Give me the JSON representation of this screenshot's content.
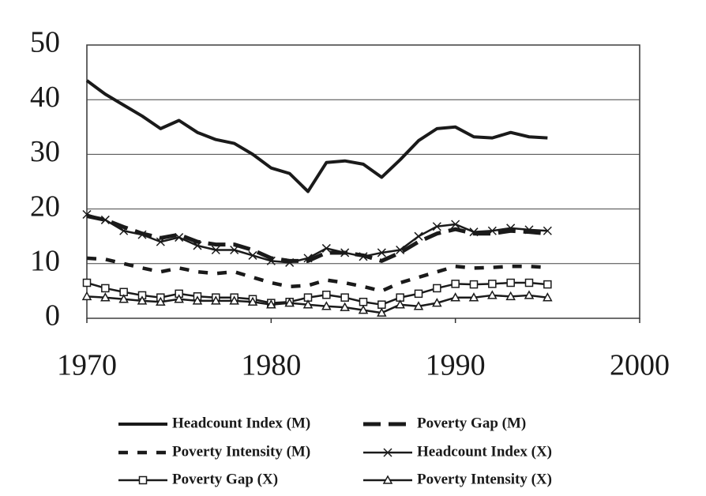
{
  "chart_data": {
    "type": "line",
    "x": [
      1970,
      1971,
      1972,
      1973,
      1974,
      1975,
      1976,
      1977,
      1978,
      1979,
      1980,
      1981,
      1982,
      1983,
      1984,
      1985,
      1986,
      1987,
      1988,
      1989,
      1990,
      1991,
      1992,
      1993,
      1994,
      1995
    ],
    "xlim": [
      1970,
      2000
    ],
    "xticks": [
      1970,
      1980,
      1990,
      2000
    ],
    "ylim": [
      0,
      50
    ],
    "yticks": [
      0,
      10,
      20,
      30,
      40,
      50
    ],
    "grid": true,
    "legend": "bottom",
    "series": [
      {
        "name": "Headcount Index (M)",
        "color": "#1a1a1a",
        "line_style": "solid",
        "marker": "none",
        "values": [
          43.5,
          41,
          39,
          37,
          34.7,
          36.2,
          34,
          32.7,
          32,
          30,
          27.5,
          26.5,
          23.2,
          28.5,
          28.8,
          28.2,
          25.8,
          29,
          32.5,
          34.7,
          35,
          33.2,
          33,
          34,
          33.2,
          33
        ]
      },
      {
        "name": "Poverty Gap (M)",
        "color": "#1a1a1a",
        "line_style": "longdash",
        "marker": "none",
        "values": [
          18.7,
          18,
          16.7,
          15.5,
          14.7,
          15.3,
          14,
          13.5,
          13.5,
          12.5,
          11,
          10.5,
          10.5,
          12,
          12,
          11.5,
          10.5,
          12,
          14,
          15.5,
          16.3,
          15.5,
          15.5,
          16,
          15.8,
          15.5
        ]
      },
      {
        "name": "Poverty Intensity (M)",
        "color": "#1a1a1a",
        "line_style": "dash",
        "marker": "none",
        "values": [
          11,
          10.8,
          10,
          9.2,
          8.5,
          9.2,
          8.5,
          8.2,
          8.5,
          7.5,
          6.5,
          5.8,
          6,
          7,
          6.5,
          5.8,
          5,
          6.5,
          7.5,
          8.5,
          9.5,
          9.2,
          9.3,
          9.5,
          9.5,
          9.3
        ]
      },
      {
        "name": "Headcount Index (X)",
        "color": "#1a1a1a",
        "line_style": "solid",
        "marker": "x",
        "values": [
          19,
          18,
          16,
          15.3,
          14,
          14.8,
          13.3,
          12.5,
          12.5,
          11.5,
          10.5,
          10.2,
          11,
          12.8,
          12,
          11.3,
          12,
          12.5,
          15,
          16.8,
          17.2,
          15.8,
          16,
          16.5,
          16.2,
          16
        ]
      },
      {
        "name": "Poverty Gap (X)",
        "color": "#1a1a1a",
        "line_style": "solid",
        "marker": "square",
        "values": [
          6.5,
          5.5,
          4.8,
          4.2,
          3.8,
          4.5,
          4,
          3.8,
          3.8,
          3.5,
          2.8,
          3,
          3.8,
          4.3,
          3.8,
          3,
          2.5,
          3.8,
          4.5,
          5.5,
          6.3,
          6.2,
          6.3,
          6.5,
          6.5,
          6.2
        ]
      },
      {
        "name": "Poverty Intensity (X)",
        "color": "#1a1a1a",
        "line_style": "solid",
        "marker": "triangle",
        "values": [
          4,
          3.8,
          3.5,
          3.2,
          3,
          3.5,
          3.2,
          3.2,
          3.2,
          3,
          2.5,
          2.8,
          2.5,
          2.2,
          2,
          1.5,
          1,
          2.5,
          2.2,
          2.8,
          3.8,
          3.8,
          4.2,
          4,
          4.2,
          3.8
        ]
      }
    ]
  }
}
